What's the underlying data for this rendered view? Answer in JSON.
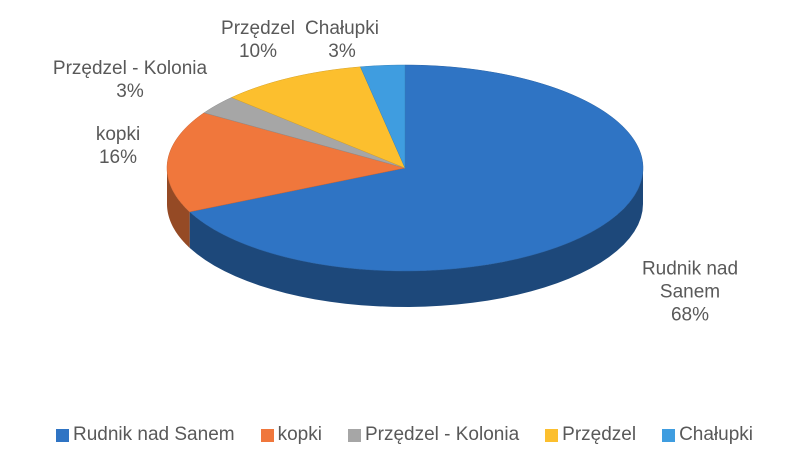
{
  "chart_data": {
    "type": "pie3d",
    "categories": [
      "Rudnik nad Sanem",
      "kopki",
      "Przędzel - Kolonia",
      "Przędzel",
      "Chałupki"
    ],
    "values": [
      68,
      16,
      3,
      10,
      3
    ],
    "value_labels": [
      "68%",
      "16%",
      "3%",
      "10%",
      "3%"
    ],
    "colors": [
      "#2f74c4",
      "#f0773c",
      "#a6a6a6",
      "#fcbf2e",
      "#3f9de0"
    ],
    "legend": "bottom"
  }
}
